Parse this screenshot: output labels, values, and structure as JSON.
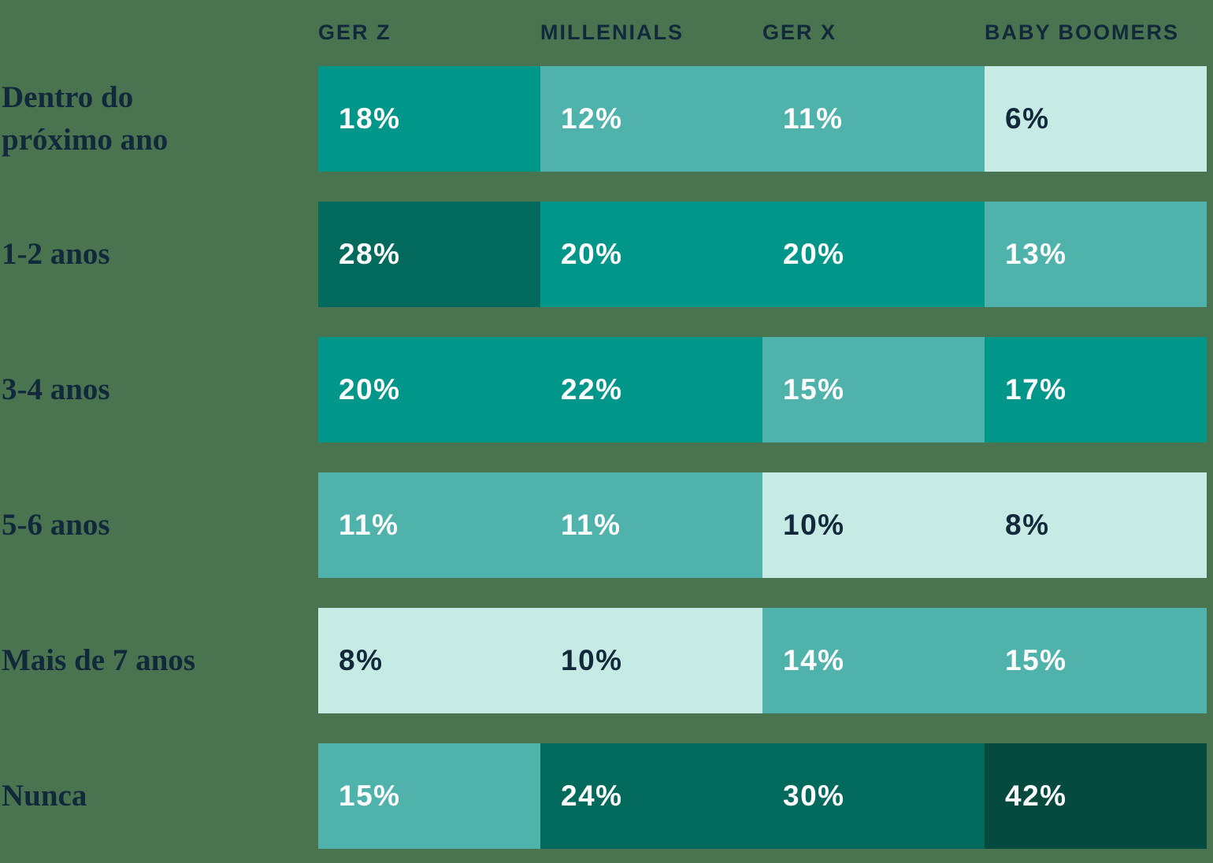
{
  "chart_data": {
    "type": "heatmap",
    "title": "",
    "unit": "%",
    "columns": [
      "GER Z",
      "MILLENIALS",
      "GER X",
      "BABY BOOMERS"
    ],
    "row_labels": [
      "Dentro do próximo ano",
      "1-2 anos",
      "3-4 anos",
      "5-6 anos",
      "Mais de 7 anos",
      "Nunca"
    ],
    "legend_position": "none",
    "grid": false,
    "value_range": [
      6,
      42
    ],
    "palette": {
      "background": "#4A734F",
      "heading_text": "#12293C",
      "value_text_on_dark": "#FFFFFF",
      "value_text_on_light": "#12293C",
      "scale": {
        "lowest": "#C6EAE4",
        "low": "#4FB2AB",
        "mid": "#00968A",
        "high": "#016A5C",
        "highest": "#054A3F"
      }
    },
    "rows": [
      {
        "label": "Dentro do\npróximo ano",
        "cells": [
          {
            "value": 18,
            "display": "18%",
            "bg": "#00968A",
            "fg": "#FFFFFF"
          },
          {
            "value": 12,
            "display": "12%",
            "bg": "#4FB2AB",
            "fg": "#FFFFFF"
          },
          {
            "value": 11,
            "display": "11%",
            "bg": "#4FB2AB",
            "fg": "#FFFFFF"
          },
          {
            "value": 6,
            "display": "6%",
            "bg": "#C6EAE4",
            "fg": "#12293C"
          }
        ]
      },
      {
        "label": "1-2 anos",
        "cells": [
          {
            "value": 28,
            "display": "28%",
            "bg": "#016A5C",
            "fg": "#FFFFFF"
          },
          {
            "value": 20,
            "display": "20%",
            "bg": "#00968A",
            "fg": "#FFFFFF"
          },
          {
            "value": 20,
            "display": "20%",
            "bg": "#00968A",
            "fg": "#FFFFFF"
          },
          {
            "value": 13,
            "display": "13%",
            "bg": "#4FB2AB",
            "fg": "#FFFFFF"
          }
        ]
      },
      {
        "label": "3-4 anos",
        "cells": [
          {
            "value": 20,
            "display": "20%",
            "bg": "#00968A",
            "fg": "#FFFFFF"
          },
          {
            "value": 22,
            "display": "22%",
            "bg": "#00968A",
            "fg": "#FFFFFF"
          },
          {
            "value": 15,
            "display": "15%",
            "bg": "#4FB2AB",
            "fg": "#FFFFFF"
          },
          {
            "value": 17,
            "display": "17%",
            "bg": "#00968A",
            "fg": "#FFFFFF"
          }
        ]
      },
      {
        "label": "5-6 anos",
        "cells": [
          {
            "value": 11,
            "display": "11%",
            "bg": "#4FB2AB",
            "fg": "#FFFFFF"
          },
          {
            "value": 11,
            "display": "11%",
            "bg": "#4FB2AB",
            "fg": "#FFFFFF"
          },
          {
            "value": 10,
            "display": "10%",
            "bg": "#C6EAE4",
            "fg": "#12293C"
          },
          {
            "value": 8,
            "display": "8%",
            "bg": "#C6EAE4",
            "fg": "#12293C"
          }
        ]
      },
      {
        "label": "Mais de 7 anos",
        "cells": [
          {
            "value": 8,
            "display": "8%",
            "bg": "#C6EAE4",
            "fg": "#12293C"
          },
          {
            "value": 10,
            "display": "10%",
            "bg": "#C6EAE4",
            "fg": "#12293C"
          },
          {
            "value": 14,
            "display": "14%",
            "bg": "#4FB2AB",
            "fg": "#FFFFFF"
          },
          {
            "value": 15,
            "display": "15%",
            "bg": "#4FB2AB",
            "fg": "#FFFFFF"
          }
        ]
      },
      {
        "label": "Nunca",
        "cells": [
          {
            "value": 15,
            "display": "15%",
            "bg": "#4FB2AB",
            "fg": "#FFFFFF"
          },
          {
            "value": 24,
            "display": "24%",
            "bg": "#016A5C",
            "fg": "#FFFFFF"
          },
          {
            "value": 30,
            "display": "30%",
            "bg": "#016A5C",
            "fg": "#FFFFFF"
          },
          {
            "value": 42,
            "display": "42%",
            "bg": "#054A3F",
            "fg": "#FFFFFF"
          }
        ]
      }
    ]
  }
}
